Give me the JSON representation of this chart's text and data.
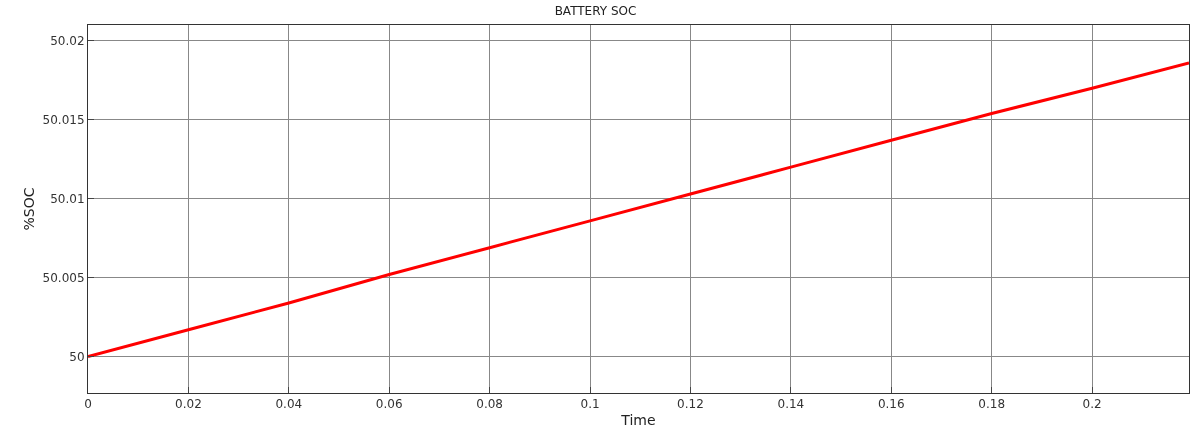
{
  "chart_data": {
    "type": "line",
    "title": "BATTERY SOC",
    "xlabel": "Time",
    "ylabel": "%SOC",
    "x": [
      0,
      0.02,
      0.04,
      0.06,
      0.08,
      0.1,
      0.12,
      0.14,
      0.16,
      0.18,
      0.2,
      0.2193
    ],
    "series": [
      {
        "color": "#ff0000",
        "values": [
          50,
          50.0017,
          50.0034,
          50.0052,
          50.0069,
          50.0086,
          50.0103,
          50.012,
          50.0137,
          50.0154,
          50.017,
          50.0186
        ]
      }
    ],
    "xlim": [
      0,
      0.2193
    ],
    "xticks": [
      0,
      0.02,
      0.04,
      0.06,
      0.08,
      0.1,
      0.12,
      0.14,
      0.16,
      0.18,
      0.2
    ],
    "ylim": [
      49.9977,
      50.021
    ],
    "yticks": [
      50,
      50.005,
      50.01,
      50.015,
      50.02
    ],
    "grid": true,
    "marker": "none",
    "line_style": "solid"
  }
}
